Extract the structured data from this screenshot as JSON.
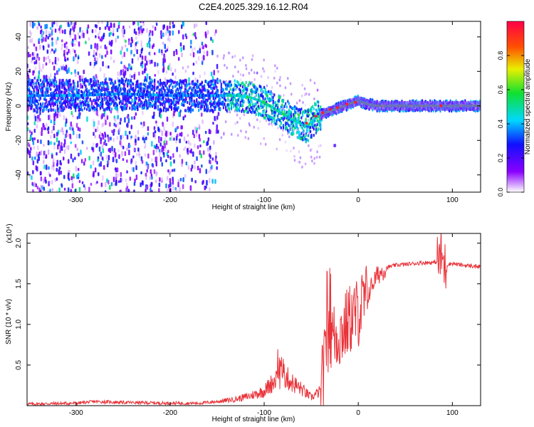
{
  "title": "C2E4.2025.329.16.12.R04",
  "chart_data": [
    {
      "type": "heatmap",
      "xlabel": "Height of straight line (km)",
      "ylabel": "Frequency (Hz)",
      "xlim": [
        -352,
        130
      ],
      "ylim": [
        -50,
        49
      ],
      "xticks": [
        -300,
        -200,
        -100,
        0,
        100
      ],
      "yticks": [
        -40,
        -20,
        0,
        20,
        40
      ],
      "ridge": {
        "x": [
          -352,
          -300,
          -250,
          -200,
          -160,
          -130,
          -115,
          -100,
          -85,
          -70,
          -55,
          -45,
          -35,
          -25,
          -15,
          -5,
          0,
          10,
          20,
          40,
          60,
          80,
          100,
          130
        ],
        "frequency": [
          6,
          6,
          7,
          6,
          6,
          6,
          5,
          2,
          -3,
          -8,
          -12,
          -7,
          -4,
          -2,
          0,
          2,
          3,
          1,
          0,
          0,
          0,
          0,
          0,
          0
        ]
      },
      "colorbar": {
        "label": "Normalized spectral amplitude",
        "range": [
          0,
          1
        ],
        "ticks": [
          0.0,
          0.2,
          0.4,
          0.6,
          0.8
        ]
      }
    },
    {
      "type": "line",
      "xlabel": "Height of straight line (km)",
      "ylabel": "SNR (10 * v/v)",
      "multiplier": "(x10⁴)",
      "xlim": [
        -352,
        130
      ],
      "ylim": [
        0,
        2.12
      ],
      "xticks": [
        -300,
        -200,
        -100,
        0,
        100
      ],
      "yticks": [
        0.5,
        1.0,
        1.5,
        2.0
      ],
      "series": [
        {
          "name": "SNR",
          "color": "#e8333a",
          "x": [
            -352,
            -300,
            -280,
            -250,
            -200,
            -170,
            -150,
            -130,
            -115,
            -100,
            -90,
            -80,
            -70,
            -60,
            -50,
            -40,
            -35,
            -30,
            -25,
            -20,
            -15,
            -10,
            -5,
            0,
            5,
            10,
            15,
            20,
            30,
            40,
            50,
            60,
            70,
            80,
            85,
            88,
            90,
            92,
            95,
            100,
            110,
            120,
            130
          ],
          "y": [
            0.02,
            0.03,
            0.05,
            0.04,
            0.03,
            0.03,
            0.05,
            0.08,
            0.12,
            0.18,
            0.3,
            0.38,
            0.28,
            0.2,
            0.1,
            0.18,
            0.6,
            0.9,
            0.85,
            0.88,
            0.95,
            1.05,
            1.1,
            1.15,
            1.25,
            1.35,
            1.5,
            1.6,
            1.7,
            1.73,
            1.74,
            1.75,
            1.76,
            1.76,
            1.78,
            1.85,
            1.78,
            1.7,
            1.74,
            1.75,
            1.73,
            1.72,
            1.71
          ]
        }
      ]
    }
  ]
}
